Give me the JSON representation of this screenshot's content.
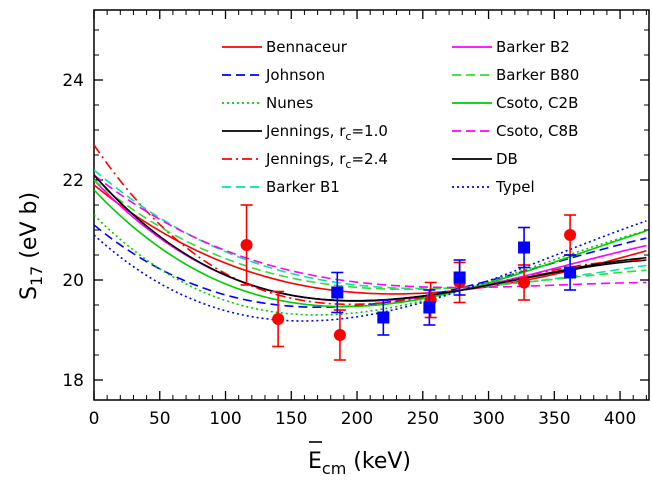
{
  "chart_data": {
    "type": "line",
    "xlabel": {
      "main": "E",
      "sub": "cm",
      "unit": " (keV)"
    },
    "ylabel": {
      "main": "S",
      "sub": "17",
      "unit": " (eV b)"
    },
    "xlim": [
      0,
      422
    ],
    "ylim": [
      17.6,
      25.4
    ],
    "xticks": [
      0,
      50,
      100,
      150,
      200,
      250,
      300,
      350,
      400
    ],
    "yticks": [
      18,
      20,
      22,
      24
    ],
    "legend": {
      "placement": "top"
    },
    "series": [
      {
        "name": "Bennaceur",
        "color": "#ff0000",
        "dash": "solid",
        "control": [
          [
            0,
            21.9
          ],
          [
            140,
            20.0
          ],
          [
            280,
            19.8
          ],
          [
            422,
            20.6
          ]
        ]
      },
      {
        "name": "Johnson",
        "color": "#0000ff",
        "dash": "dashed",
        "control": [
          [
            0,
            21.1
          ],
          [
            140,
            19.5
          ],
          [
            280,
            19.85
          ],
          [
            422,
            20.85
          ]
        ]
      },
      {
        "name": "Nunes",
        "color": "#00cc00",
        "dash": "dotted",
        "control": [
          [
            0,
            21.3
          ],
          [
            140,
            19.35
          ],
          [
            280,
            19.8
          ],
          [
            422,
            21.0
          ]
        ]
      },
      {
        "name": "Jennings, r",
        "name_sub": "c",
        "name_tail": "=1.0",
        "color": "#000000",
        "dash": "solid",
        "control": [
          [
            0,
            22.1
          ],
          [
            140,
            19.75
          ],
          [
            280,
            19.8
          ],
          [
            422,
            20.4
          ]
        ]
      },
      {
        "name": "Jennings, r",
        "name_sub": "c",
        "name_tail": "=2.4",
        "color": "#ff0000",
        "dash": "dashdot",
        "control": [
          [
            0,
            22.7
          ],
          [
            140,
            19.7
          ],
          [
            280,
            19.8
          ],
          [
            422,
            20.4
          ]
        ]
      },
      {
        "name": "Barker B1",
        "color": "#00e5a8",
        "dash": "dashed",
        "control": [
          [
            0,
            22.2
          ],
          [
            140,
            20.2
          ],
          [
            280,
            19.85
          ],
          [
            422,
            20.3
          ]
        ]
      },
      {
        "name": "Barker B2",
        "color": "#ff00ff",
        "dash": "solid",
        "control": [
          [
            0,
            22.0
          ],
          [
            140,
            19.75
          ],
          [
            280,
            19.8
          ],
          [
            422,
            20.7
          ]
        ]
      },
      {
        "name": "Barker B80",
        "color": "#33dd33",
        "dash": "dashed",
        "control": [
          [
            0,
            22.0
          ],
          [
            140,
            20.1
          ],
          [
            280,
            19.85
          ],
          [
            422,
            20.2
          ]
        ]
      },
      {
        "name": "Csoto, C2B",
        "color": "#00cc00",
        "dash": "solid",
        "control": [
          [
            0,
            21.8
          ],
          [
            140,
            19.6
          ],
          [
            280,
            19.8
          ],
          [
            422,
            21.0
          ]
        ]
      },
      {
        "name": "Csoto, C8B",
        "color": "#ff00ff",
        "dash": "dashed",
        "control": [
          [
            0,
            22.1
          ],
          [
            140,
            20.25
          ],
          [
            280,
            19.85
          ],
          [
            422,
            19.95
          ]
        ]
      },
      {
        "name": "DB",
        "color": "#000000",
        "dash": "solid",
        "control": [
          [
            0,
            22.1
          ],
          [
            140,
            19.75
          ],
          [
            280,
            19.8
          ],
          [
            422,
            20.45
          ]
        ]
      },
      {
        "name": "Typel",
        "color": "#0000ff",
        "dash": "dotted",
        "control": [
          [
            0,
            20.9
          ],
          [
            140,
            19.2
          ],
          [
            280,
            19.8
          ],
          [
            422,
            21.2
          ]
        ]
      }
    ],
    "data_points": [
      {
        "marker": "circle",
        "color": "#ff0000",
        "points": [
          {
            "x": 116,
            "y": 20.7,
            "yerr": 0.8
          },
          {
            "x": 140,
            "y": 19.22,
            "yerr": 0.55
          },
          {
            "x": 187,
            "y": 18.9,
            "yerr": 0.5
          },
          {
            "x": 256,
            "y": 19.6,
            "yerr": 0.35
          },
          {
            "x": 278,
            "y": 19.95,
            "yerr": 0.4
          },
          {
            "x": 327,
            "y": 19.95,
            "yerr": 0.35
          },
          {
            "x": 362,
            "y": 20.9,
            "yerr": 0.4
          }
        ]
      },
      {
        "marker": "square",
        "color": "#0000ff",
        "points": [
          {
            "x": 185,
            "y": 19.75,
            "yerr": 0.4
          },
          {
            "x": 220,
            "y": 19.25,
            "yerr": 0.35
          },
          {
            "x": 255,
            "y": 19.45,
            "yerr": 0.35
          },
          {
            "x": 278,
            "y": 20.05,
            "yerr": 0.35
          },
          {
            "x": 327,
            "y": 20.65,
            "yerr": 0.4
          },
          {
            "x": 362,
            "y": 20.15,
            "yerr": 0.35
          }
        ]
      }
    ]
  }
}
